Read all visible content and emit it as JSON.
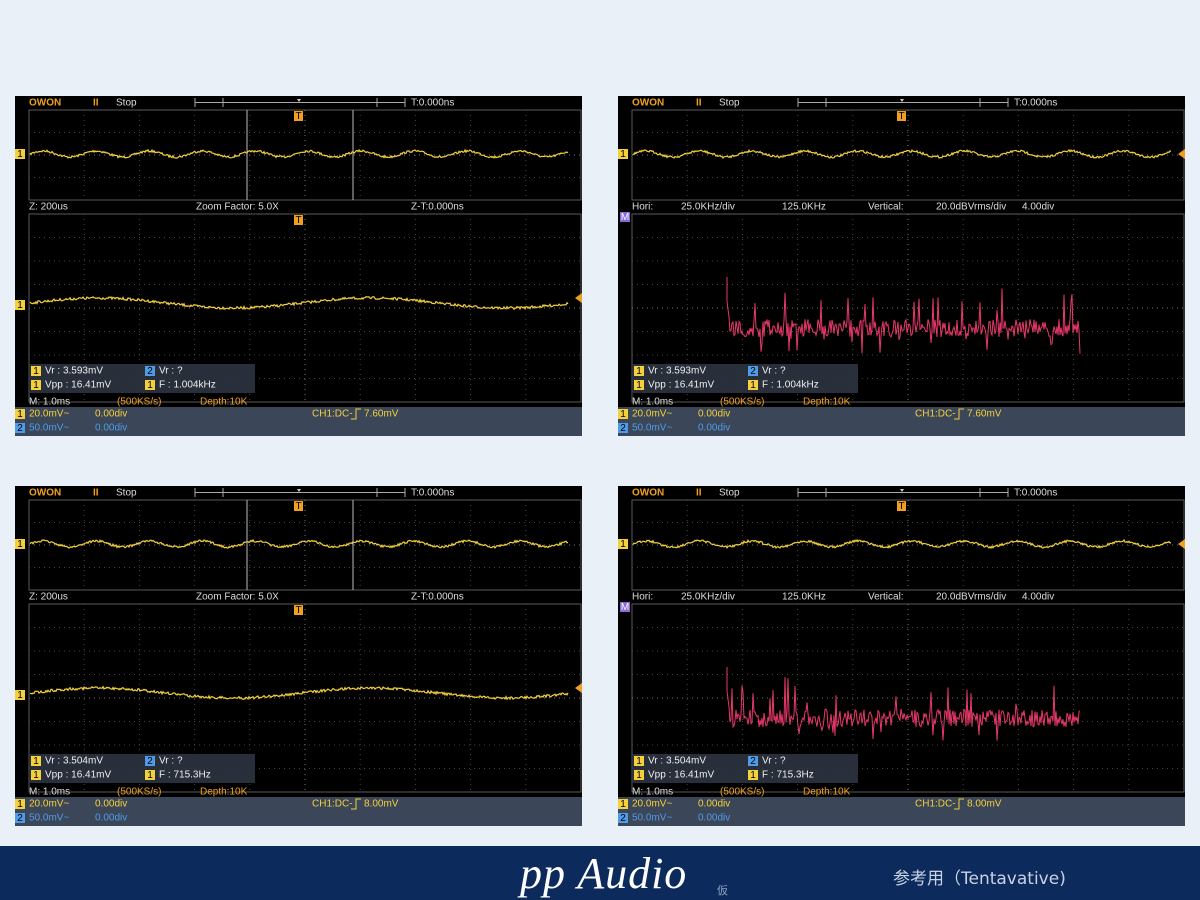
{
  "scopes": [
    {
      "mode": "zoom",
      "header": {
        "brand": "OWON",
        "run": "II",
        "state": "Stop",
        "trigger_time": "T:0.000ns"
      },
      "markers": {
        "channel": "1",
        "trigger": "T"
      },
      "info": [
        "Z: 200us",
        "Zoom Factor: 5.0X",
        "Z-T:0.000ns"
      ],
      "measurements": [
        {
          "channel": "1",
          "text": "Vr : 3.593mV"
        },
        {
          "channel": "2",
          "text": "Vr :    ?"
        },
        {
          "channel": "1",
          "text": "Vpp : 16.41mV"
        },
        {
          "channel": "1",
          "text": "F : 1.004kHz"
        }
      ],
      "timebase": "M: 1.0ms",
      "sample_rate": "(500KS/s)",
      "depth": "Depth:10K",
      "channels": [
        {
          "badge": "1",
          "scale": "20.0mV~",
          "offset": "0.00div"
        },
        {
          "badge": "2",
          "scale": "50.0mV~",
          "offset": "0.00div"
        }
      ],
      "trigger": {
        "source": "CH1:DC-",
        "level": "7.60mV"
      }
    },
    {
      "mode": "fft",
      "header": {
        "brand": "OWON",
        "run": "II",
        "state": "Stop",
        "trigger_time": "T:0.000ns"
      },
      "markers": {
        "channel": "1",
        "trigger": "T",
        "math": "M"
      },
      "info": [
        "Hori:",
        "25.0KHz/div",
        "125.0KHz",
        "Vertical:",
        "20.0dBVrms/div",
        "4.00div"
      ],
      "measurements": [
        {
          "channel": "1",
          "text": "Vr : 3.593mV"
        },
        {
          "channel": "2",
          "text": "Vr :    ?"
        },
        {
          "channel": "1",
          "text": "Vpp : 16.41mV"
        },
        {
          "channel": "1",
          "text": "F : 1.004kHz"
        }
      ],
      "timebase": "M: 1.0ms",
      "sample_rate": "(500KS/s)",
      "depth": "Depth:10K",
      "channels": [
        {
          "badge": "1",
          "scale": "20.0mV~",
          "offset": "0.00div"
        },
        {
          "badge": "2",
          "scale": "50.0mV~",
          "offset": "0.00div"
        }
      ],
      "trigger": {
        "source": "CH1:DC-",
        "level": "7.60mV"
      }
    },
    {
      "mode": "zoom",
      "header": {
        "brand": "OWON",
        "run": "II",
        "state": "Stop",
        "trigger_time": "T:0.000ns"
      },
      "markers": {
        "channel": "1",
        "trigger": "T"
      },
      "info": [
        "Z: 200us",
        "Zoom Factor: 5.0X",
        "Z-T:0.000ns"
      ],
      "measurements": [
        {
          "channel": "1",
          "text": "Vr : 3.504mV"
        },
        {
          "channel": "2",
          "text": "Vr :    ?"
        },
        {
          "channel": "1",
          "text": "Vpp : 16.41mV"
        },
        {
          "channel": "1",
          "text": "F : 715.3Hz"
        }
      ],
      "timebase": "M: 1.0ms",
      "sample_rate": "(500KS/s)",
      "depth": "Depth:10K",
      "channels": [
        {
          "badge": "1",
          "scale": "20.0mV~",
          "offset": "0.00div"
        },
        {
          "badge": "2",
          "scale": "50.0mV~",
          "offset": "0.00div"
        }
      ],
      "trigger": {
        "source": "CH1:DC-",
        "level": "8.00mV"
      }
    },
    {
      "mode": "fft",
      "header": {
        "brand": "OWON",
        "run": "II",
        "state": "Stop",
        "trigger_time": "T:0.000ns"
      },
      "markers": {
        "channel": "1",
        "trigger": "T",
        "math": "M"
      },
      "info": [
        "Hori:",
        "25.0KHz/div",
        "125.0KHz",
        "Vertical:",
        "20.0dBVrms/div",
        "4.00div"
      ],
      "measurements": [
        {
          "channel": "1",
          "text": "Vr : 3.504mV"
        },
        {
          "channel": "2",
          "text": "Vr :    ?"
        },
        {
          "channel": "1",
          "text": "Vpp : 16.41mV"
        },
        {
          "channel": "1",
          "text": "F : 715.3Hz"
        }
      ],
      "timebase": "M: 1.0ms",
      "sample_rate": "(500KS/s)",
      "depth": "Depth:10K",
      "channels": [
        {
          "badge": "1",
          "scale": "20.0mV~",
          "offset": "0.00div"
        },
        {
          "badge": "2",
          "scale": "50.0mV~",
          "offset": "0.00div"
        }
      ],
      "trigger": {
        "source": "CH1:DC-",
        "level": "8.00mV"
      }
    }
  ],
  "footer": {
    "logo": "pp Audio",
    "logo_note": "仮",
    "note": "参考用（Tentavative)"
  }
}
